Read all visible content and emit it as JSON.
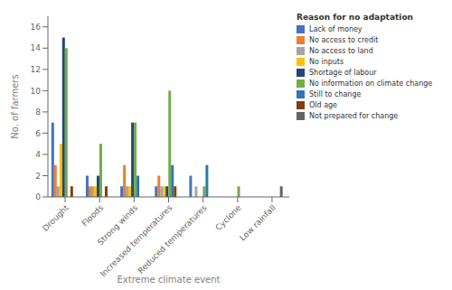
{
  "chart_data": {
    "type": "bar",
    "xlabel": "Extreme climate event",
    "ylabel": "No. of farmers",
    "legend_title": "Reason for no adaptation",
    "categories": [
      "Drought",
      "Floods",
      "Strong winds",
      "Increased temperatures",
      "Reduced temperatures",
      "Cyclone",
      "Low rainfall"
    ],
    "series": [
      {
        "name": "Lack of money",
        "color": "#4472C4",
        "values": [
          7,
          2,
          1,
          1,
          2,
          0,
          0
        ]
      },
      {
        "name": "No access to credit",
        "color": "#ED7D31",
        "values": [
          3,
          1,
          3,
          2,
          0,
          0,
          0
        ]
      },
      {
        "name": "No access to land",
        "color": "#A5A5A5",
        "values": [
          1,
          1,
          1,
          1,
          1,
          0,
          0
        ]
      },
      {
        "name": "No inputs",
        "color": "#FFC000",
        "values": [
          5,
          1,
          1,
          1,
          0,
          0,
          0
        ]
      },
      {
        "name": "Shortage of labour",
        "color": "#264478",
        "values": [
          15,
          2,
          7,
          1,
          0,
          0,
          0
        ]
      },
      {
        "name": "No information on climate change",
        "color": "#70AD47",
        "values": [
          14,
          5,
          7,
          10,
          1,
          1,
          0
        ]
      },
      {
        "name": "Still to change",
        "color": "#2E75B6",
        "values": [
          0,
          0,
          2,
          3,
          3,
          0,
          0
        ]
      },
      {
        "name": "Old age",
        "color": "#843C0C",
        "values": [
          1,
          1,
          0,
          1,
          0,
          0,
          0
        ]
      },
      {
        "name": "Not prepared for change",
        "color": "#636363",
        "values": [
          0,
          0,
          0,
          0,
          0,
          0,
          1
        ]
      }
    ],
    "ylim": [
      0,
      17
    ],
    "yticks": [
      0,
      2,
      4,
      6,
      8,
      10,
      12,
      14,
      16
    ],
    "grid": false,
    "legend": "right"
  }
}
